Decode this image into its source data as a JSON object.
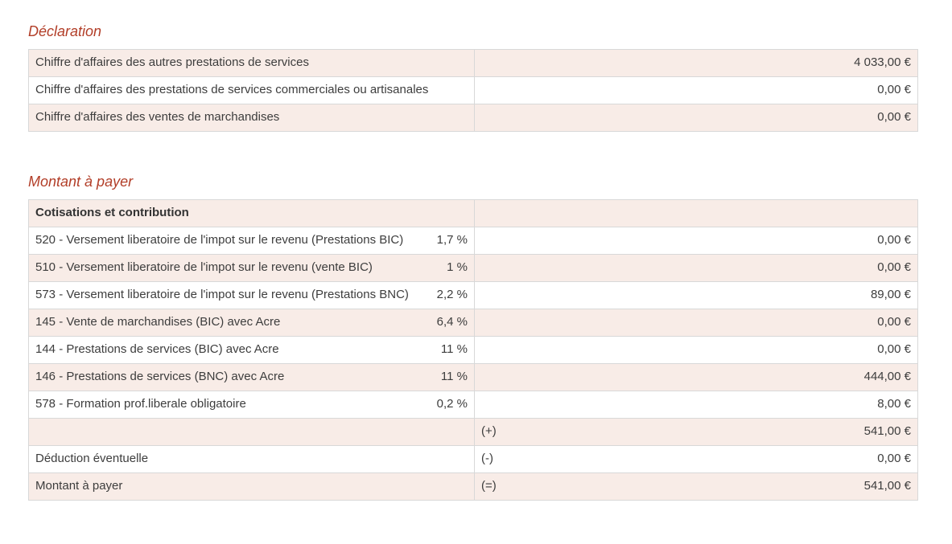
{
  "colors": {
    "accent": "#b23e28",
    "stripe_row_bg": "#f8ece7",
    "border": "#d8d8d8",
    "text": "#3d3d3d"
  },
  "declaration": {
    "title": "Déclaration",
    "rows": [
      {
        "label": "Chiffre d'affaires des autres prestations de services",
        "value": "4 033,00 €"
      },
      {
        "label": "Chiffre d'affaires des prestations de services commerciales ou artisanales",
        "value": "0,00 €"
      },
      {
        "label": "Chiffre d'affaires des ventes de marchandises",
        "value": "0,00 €"
      }
    ]
  },
  "montant": {
    "title": "Montant à payer",
    "header": "Cotisations et contribution",
    "rows": [
      {
        "label": "520 - Versement liberatoire de l'impot sur le revenu (Prestations BIC)",
        "rate": "1,7 %",
        "operator": "",
        "value": "0,00 €"
      },
      {
        "label": "510 - Versement liberatoire de l'impot sur le revenu (vente BIC)",
        "rate": "1 %",
        "operator": "",
        "value": "0,00 €"
      },
      {
        "label": "573 - Versement liberatoire de l'impot sur le revenu (Prestations BNC)",
        "rate": "2,2 %",
        "operator": "",
        "value": "89,00 €"
      },
      {
        "label": "145 - Vente de marchandises (BIC) avec Acre",
        "rate": "6,4 %",
        "operator": "",
        "value": "0,00 €"
      },
      {
        "label": "144 - Prestations de services (BIC) avec Acre",
        "rate": "11 %",
        "operator": "",
        "value": "0,00 €"
      },
      {
        "label": "146 - Prestations de services (BNC) avec Acre",
        "rate": "11 %",
        "operator": "",
        "value": "444,00 €"
      },
      {
        "label": "578 - Formation prof.liberale obligatoire",
        "rate": "0,2 %",
        "operator": "",
        "value": "8,00 €"
      },
      {
        "label": "",
        "rate": "",
        "operator": "(+)",
        "value": "541,00 €"
      },
      {
        "label": "Déduction éventuelle",
        "rate": "",
        "operator": "(-)",
        "value": "0,00 €"
      },
      {
        "label": "Montant à payer",
        "rate": "",
        "operator": "(=)",
        "value": "541,00 €"
      }
    ]
  }
}
